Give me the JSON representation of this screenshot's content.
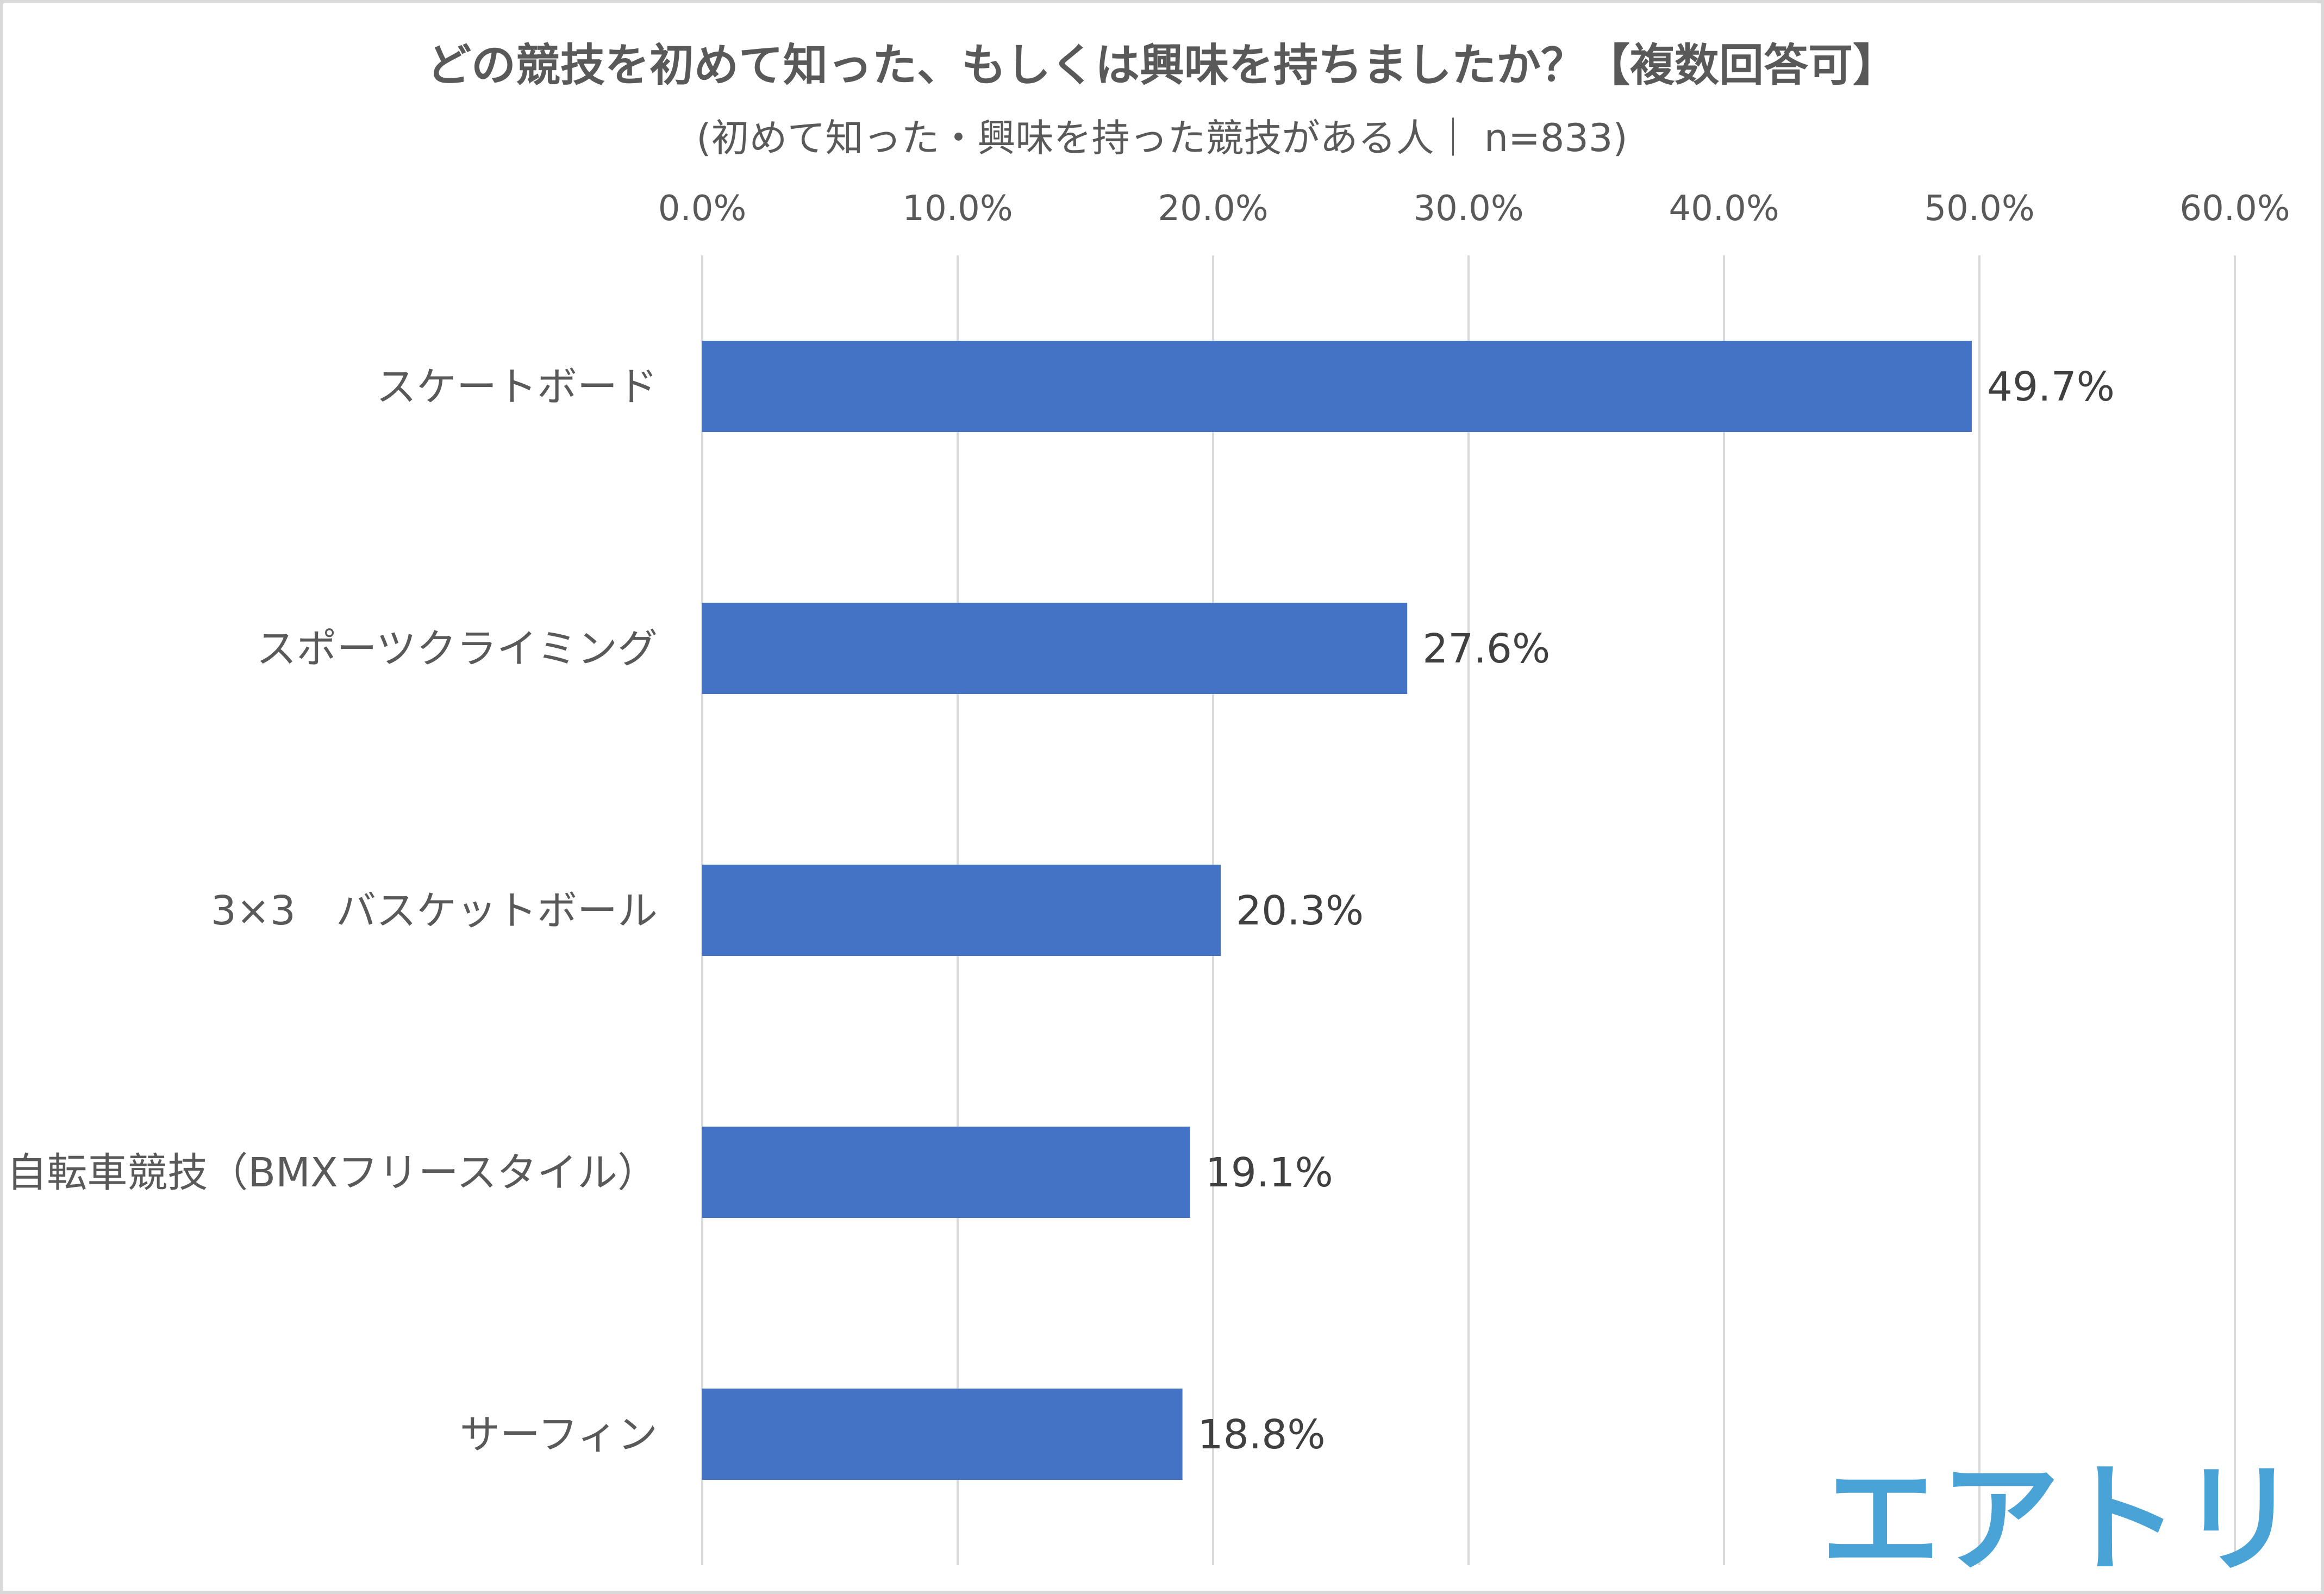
{
  "chart_data": {
    "type": "bar",
    "orientation": "horizontal",
    "title": "どの競技を初めて知った、もしくは興味を持ちましたか？【複数回答可】",
    "subtitle": "(初めて知った・興味を持った競技がある人｜ n=833)",
    "categories": [
      "スケートボード",
      "スポーツクライミング",
      "3×3　バスケットボール",
      "自転車競技（BMXフリースタイル）",
      "サーフィン"
    ],
    "values": [
      49.7,
      27.6,
      20.3,
      19.1,
      18.8
    ],
    "value_labels": [
      "49.7%",
      "27.6%",
      "20.3%",
      "19.1%",
      "18.8%"
    ],
    "xlim": [
      0,
      60
    ],
    "xticks": [
      0,
      10,
      20,
      30,
      40,
      50,
      60
    ],
    "xtick_labels": [
      "0.0%",
      "10.0%",
      "20.0%",
      "30.0%",
      "40.0%",
      "50.0%",
      "60.0%"
    ],
    "x_axis_position": "top",
    "grid": true,
    "legend": "none"
  },
  "colors": {
    "bar": "#4472c4",
    "grid": "#d9d9d9",
    "text": "#595959",
    "label": "#404040",
    "logo": "#4aa3d6"
  },
  "logo": {
    "text": "エアトリ"
  }
}
